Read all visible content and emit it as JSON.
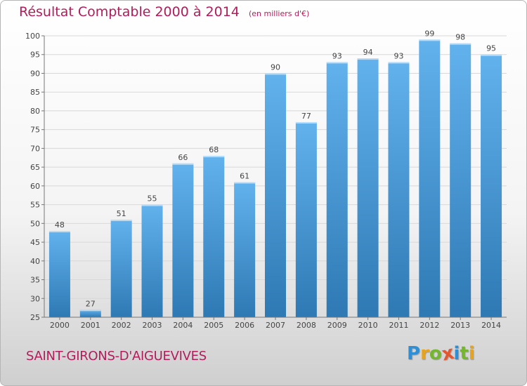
{
  "header": {
    "title": "Résultat Comptable 2000 à 2014",
    "subtitle": "(en milliers d'€)"
  },
  "footer": {
    "commune": "SAINT-GIRONS-D'AIGUEVIVES",
    "logo": {
      "letters": [
        "P",
        "r",
        "o",
        "x",
        "i",
        "t",
        "i"
      ],
      "colors": [
        "#2f8fd6",
        "#e8a31c",
        "#74b62e",
        "#e4572e",
        "#2f8fd6",
        "#74b62e",
        "#e8a31c"
      ]
    }
  },
  "colors": {
    "bar_light": "#62b2ee",
    "bar_dark": "#2e79b4",
    "axis": "#777777",
    "grid": "#d8d8d8",
    "label": "#444444",
    "title": "#b11d5a"
  },
  "chart_data": {
    "type": "bar",
    "title": "Résultat Comptable 2000 à 2014",
    "subtitle": "(en milliers d'€)",
    "categories": [
      "2000",
      "2001",
      "2002",
      "2003",
      "2004",
      "2005",
      "2006",
      "2007",
      "2008",
      "2009",
      "2010",
      "2011",
      "2012",
      "2013",
      "2014"
    ],
    "values": [
      48,
      27,
      51,
      55,
      66,
      68,
      61,
      90,
      77,
      93,
      94,
      93,
      99,
      98,
      95
    ],
    "ylim": [
      25,
      100
    ],
    "yticks": [
      25,
      30,
      35,
      40,
      45,
      50,
      55,
      60,
      65,
      70,
      75,
      80,
      85,
      90,
      95,
      100
    ],
    "grid": true,
    "data_labels": true
  }
}
